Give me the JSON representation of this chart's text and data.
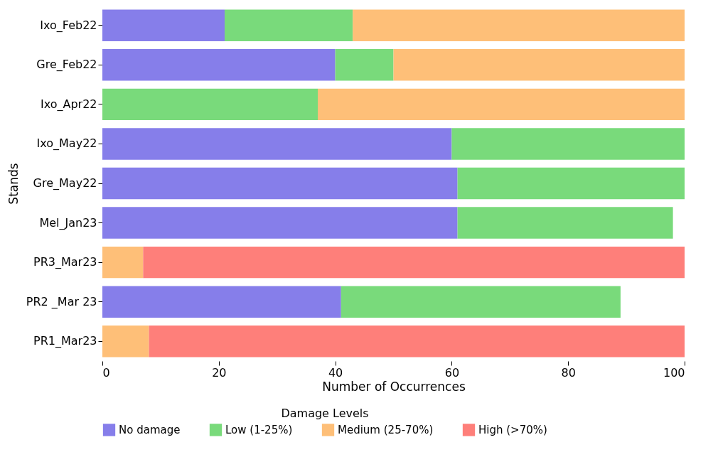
{
  "chart_data": {
    "type": "bar",
    "orientation": "horizontal",
    "stacked": true,
    "xlabel": "Number of Occurrences",
    "ylabel": "Stands",
    "legend_title": "Damage Levels",
    "legend": "bottom",
    "grid": false,
    "categories": [
      "Ixo_Feb22",
      "Gre_Feb22",
      "Ixo_Apr22",
      "Ixo_May22",
      "Gre_May22",
      "Mel_Jan23",
      "PR3_Mar23",
      "PR2 _Mar 23",
      "PR1_Mar23"
    ],
    "xlim": [
      0,
      100
    ],
    "xticks": [
      0,
      20,
      40,
      60,
      80,
      100
    ],
    "series": [
      {
        "name": "No damage",
        "color": "#867eea",
        "values": [
          21,
          40,
          null,
          60,
          61,
          61,
          null,
          41,
          null
        ]
      },
      {
        "name": "Low (1-25%)",
        "color": "#79da7b",
        "values": [
          22,
          10,
          37,
          40,
          39,
          37,
          null,
          48,
          null
        ]
      },
      {
        "name": "Medium (25-70%)",
        "color": "#febf78",
        "values": [
          57,
          50,
          63,
          null,
          null,
          null,
          7,
          null,
          8
        ]
      },
      {
        "name": "High (>70%)",
        "color": "#fe7f7a",
        "values": [
          null,
          null,
          null,
          null,
          null,
          null,
          93,
          null,
          92
        ]
      }
    ]
  }
}
